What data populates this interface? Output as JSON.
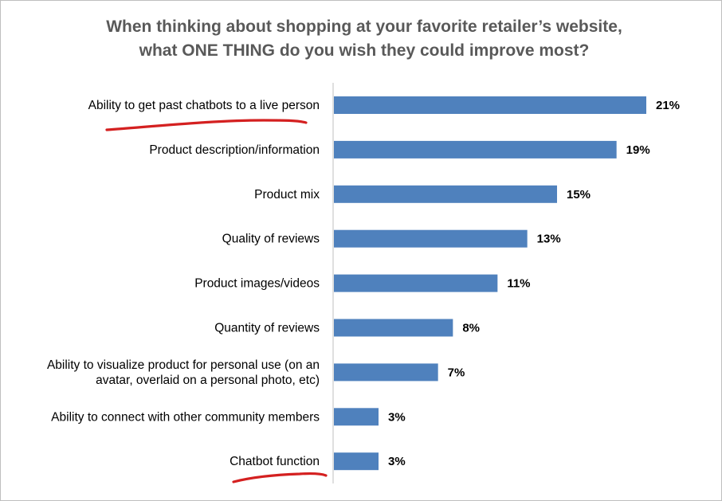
{
  "colors": {
    "bar": "#4f81bd",
    "axis": "#bfbfbf",
    "title": "#595959",
    "annotation": "#d42020"
  },
  "chart_data": {
    "type": "bar",
    "orientation": "horizontal",
    "title_lines": [
      "When thinking about shopping at your favorite retailer’s website,",
      "what ONE THING do you wish they could improve most?"
    ],
    "categories": [
      [
        "Ability to get past chatbots to a live person"
      ],
      [
        "Product description/information"
      ],
      [
        "Product mix"
      ],
      [
        "Quality of reviews"
      ],
      [
        "Product images/videos"
      ],
      [
        "Quantity of reviews"
      ],
      [
        "Ability to visualize product for personal use (on an",
        "avatar, overlaid on a personal photo, etc)"
      ],
      [
        "Ability to connect with other community members"
      ],
      [
        "Chatbot function"
      ]
    ],
    "values": [
      21,
      19,
      15,
      13,
      11,
      8,
      7,
      3,
      3
    ],
    "data_labels": [
      "21%",
      "19%",
      "15%",
      "13%",
      "11%",
      "8%",
      "7%",
      "3%",
      "3%"
    ],
    "unit": "%",
    "xlim": [
      0,
      21
    ],
    "grid": false,
    "legend": "none",
    "annotations": [
      {
        "type": "hand-drawn-underline",
        "category_index": 0
      },
      {
        "type": "hand-drawn-underline",
        "category_index": 8
      }
    ]
  }
}
